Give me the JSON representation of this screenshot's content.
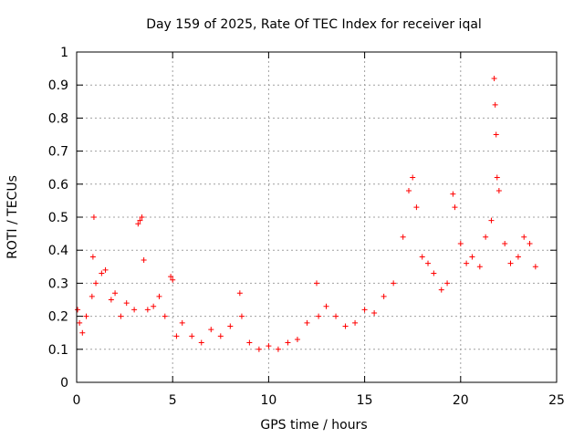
{
  "chart_data": {
    "type": "scatter",
    "title": "Day 159 of 2025, Rate Of TEC Index for receiver iqal",
    "xlabel": "GPS time / hours",
    "ylabel": "ROTI / TECUs",
    "xlim": [
      0,
      25
    ],
    "ylim": [
      0,
      1
    ],
    "x_ticks": [
      "0",
      "5",
      "10",
      "15",
      "20",
      "25"
    ],
    "y_ticks": [
      "0",
      "0.1",
      "0.2",
      "0.3",
      "0.4",
      "0.5",
      "0.6",
      "0.7",
      "0.8",
      "0.9",
      "1"
    ],
    "grid": true,
    "marker": "+",
    "color": "#ff0000",
    "series": [
      {
        "name": "ROTI",
        "x": [
          0.05,
          0.15,
          0.3,
          0.5,
          0.8,
          0.85,
          0.9,
          1.0,
          1.3,
          1.5,
          1.8,
          2.0,
          2.3,
          2.6,
          3.0,
          3.2,
          3.3,
          3.4,
          3.5,
          3.7,
          4.0,
          4.3,
          4.6,
          4.9,
          5.0,
          5.2,
          5.5,
          6.0,
          6.5,
          7.0,
          7.5,
          8.0,
          8.5,
          8.6,
          9.0,
          9.5,
          10.0,
          10.5,
          11.0,
          11.5,
          12.0,
          12.5,
          12.6,
          13.0,
          13.5,
          14.0,
          14.5,
          15.0,
          15.5,
          16.0,
          16.5,
          17.0,
          17.3,
          17.5,
          17.7,
          18.0,
          18.3,
          18.6,
          19.0,
          19.3,
          19.6,
          19.7,
          20.0,
          20.3,
          20.6,
          21.0,
          21.3,
          21.6,
          21.75,
          21.8,
          21.85,
          21.9,
          22.0,
          22.3,
          22.6,
          23.0,
          23.3,
          23.6,
          23.9
        ],
        "y": [
          0.22,
          0.18,
          0.15,
          0.2,
          0.26,
          0.38,
          0.5,
          0.3,
          0.33,
          0.34,
          0.25,
          0.27,
          0.2,
          0.24,
          0.22,
          0.48,
          0.49,
          0.5,
          0.37,
          0.22,
          0.23,
          0.26,
          0.2,
          0.32,
          0.31,
          0.14,
          0.18,
          0.14,
          0.12,
          0.16,
          0.14,
          0.17,
          0.27,
          0.2,
          0.12,
          0.1,
          0.11,
          0.1,
          0.12,
          0.13,
          0.18,
          0.3,
          0.2,
          0.23,
          0.2,
          0.17,
          0.18,
          0.22,
          0.21,
          0.26,
          0.3,
          0.44,
          0.58,
          0.62,
          0.53,
          0.38,
          0.36,
          0.33,
          0.28,
          0.3,
          0.57,
          0.53,
          0.42,
          0.36,
          0.38,
          0.35,
          0.44,
          0.49,
          0.92,
          0.84,
          0.75,
          0.62,
          0.58,
          0.42,
          0.36,
          0.38,
          0.44,
          0.42,
          0.35
        ]
      }
    ]
  }
}
